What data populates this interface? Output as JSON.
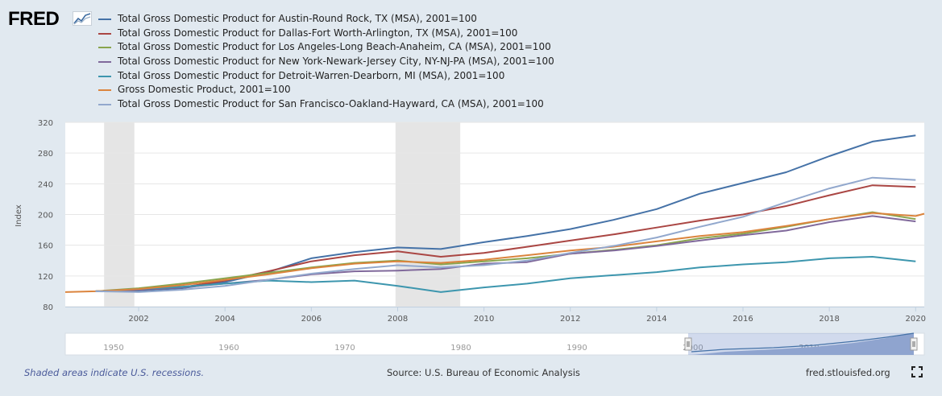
{
  "logo": {
    "text": "FRED",
    "icon": "chart-line-icon"
  },
  "chart_data": {
    "type": "line",
    "ylabel": "Index",
    "ylim": [
      80,
      320
    ],
    "yticks": [
      80,
      120,
      160,
      200,
      240,
      280,
      320
    ],
    "xlim": [
      2000.3,
      2020.2
    ],
    "xticks": [
      2002,
      2004,
      2006,
      2008,
      2010,
      2012,
      2014,
      2016,
      2018,
      2020
    ],
    "recessions": [
      [
        2001.2,
        2001.9
      ],
      [
        2007.95,
        2009.45
      ]
    ],
    "legend_position": "top",
    "grid": "horizontal",
    "series": [
      {
        "name": "Total Gross Domestic Product for Austin-Round Rock, TX (MSA), 2001=100",
        "color": "#4572a7",
        "x": [
          2001,
          2002,
          2003,
          2004,
          2005,
          2006,
          2007,
          2008,
          2009,
          2010,
          2011,
          2012,
          2013,
          2014,
          2015,
          2016,
          2017,
          2018,
          2019,
          2020
        ],
        "values": [
          100,
          101,
          104,
          112,
          125,
          143,
          151,
          157,
          155,
          164,
          172,
          181,
          193,
          207,
          227,
          241,
          255,
          276,
          295,
          303
        ]
      },
      {
        "name": "Total Gross Domestic Product for Dallas-Fort Worth-Arlington, TX (MSA), 2001=100",
        "color": "#aa4643",
        "x": [
          2001,
          2002,
          2003,
          2004,
          2005,
          2006,
          2007,
          2008,
          2009,
          2010,
          2011,
          2012,
          2013,
          2014,
          2015,
          2016,
          2017,
          2018,
          2019,
          2020
        ],
        "values": [
          100,
          102,
          105,
          114,
          126,
          139,
          147,
          152,
          145,
          150,
          158,
          166,
          174,
          183,
          192,
          200,
          211,
          225,
          238,
          236
        ]
      },
      {
        "name": "Total Gross Domestic Product for Los Angeles-Long Beach-Anaheim, CA (MSA), 2001=100",
        "color": "#89a54e",
        "x": [
          2001,
          2002,
          2003,
          2004,
          2005,
          2006,
          2007,
          2008,
          2009,
          2010,
          2011,
          2012,
          2013,
          2014,
          2015,
          2016,
          2017,
          2018,
          2019,
          2020
        ],
        "values": [
          100,
          104,
          110,
          117,
          124,
          131,
          137,
          140,
          135,
          139,
          143,
          149,
          154,
          160,
          169,
          175,
          184,
          194,
          203,
          194
        ]
      },
      {
        "name": "Total Gross Domestic Product for New York-Newark-Jersey City, NY-NJ-PA (MSA), 2001=100",
        "color": "#80699b",
        "x": [
          2001,
          2002,
          2003,
          2004,
          2005,
          2006,
          2007,
          2008,
          2009,
          2010,
          2011,
          2012,
          2013,
          2014,
          2015,
          2016,
          2017,
          2018,
          2019,
          2020
        ],
        "values": [
          100,
          102,
          105,
          110,
          115,
          122,
          126,
          127,
          129,
          136,
          138,
          149,
          153,
          159,
          166,
          173,
          179,
          190,
          198,
          191
        ]
      },
      {
        "name": "Total Gross Domestic Product for Detroit-Warren-Dearborn, MI (MSA), 2001=100",
        "color": "#3d96ae",
        "x": [
          2001,
          2002,
          2003,
          2004,
          2005,
          2006,
          2007,
          2008,
          2009,
          2010,
          2011,
          2012,
          2013,
          2014,
          2015,
          2016,
          2017,
          2018,
          2019,
          2020
        ],
        "values": [
          100,
          103,
          106,
          110,
          114,
          112,
          114,
          107,
          99,
          105,
          110,
          117,
          121,
          125,
          131,
          135,
          138,
          143,
          145,
          139
        ]
      },
      {
        "name": "Gross Domestic Product, 2001=100",
        "color": "#db843d",
        "x": [
          2000.3,
          2001,
          2002,
          2003,
          2004,
          2005,
          2006,
          2007,
          2008,
          2009,
          2010,
          2011,
          2012,
          2013,
          2014,
          2015,
          2016,
          2017,
          2018,
          2019,
          2020,
          2020.2
        ],
        "values": [
          99,
          100,
          103,
          108,
          115,
          122,
          130,
          136,
          139,
          137,
          141,
          147,
          153,
          158,
          165,
          172,
          177,
          185,
          194,
          202,
          198,
          201
        ]
      },
      {
        "name": "Total Gross Domestic Product for San Francisco-Oakland-Hayward, CA (MSA), 2001=100",
        "color": "#92a8cd",
        "x": [
          2001,
          2002,
          2003,
          2004,
          2005,
          2006,
          2007,
          2008,
          2009,
          2010,
          2011,
          2012,
          2013,
          2014,
          2015,
          2016,
          2017,
          2018,
          2019,
          2020
        ],
        "values": [
          100,
          99,
          102,
          107,
          115,
          123,
          129,
          134,
          131,
          134,
          140,
          150,
          159,
          170,
          184,
          197,
          216,
          234,
          248,
          245
        ]
      }
    ]
  },
  "navigator": {
    "ticks": [
      "1950",
      "1960",
      "1970",
      "1980",
      "1990",
      "2000",
      "2010"
    ]
  },
  "footer": {
    "recession_note": "Shaded areas indicate U.S. recessions.",
    "source": "Source: U.S. Bureau of Economic Analysis",
    "site": "fred.stlouisfed.org"
  },
  "icons": {
    "expand": "fullscreen-icon"
  }
}
